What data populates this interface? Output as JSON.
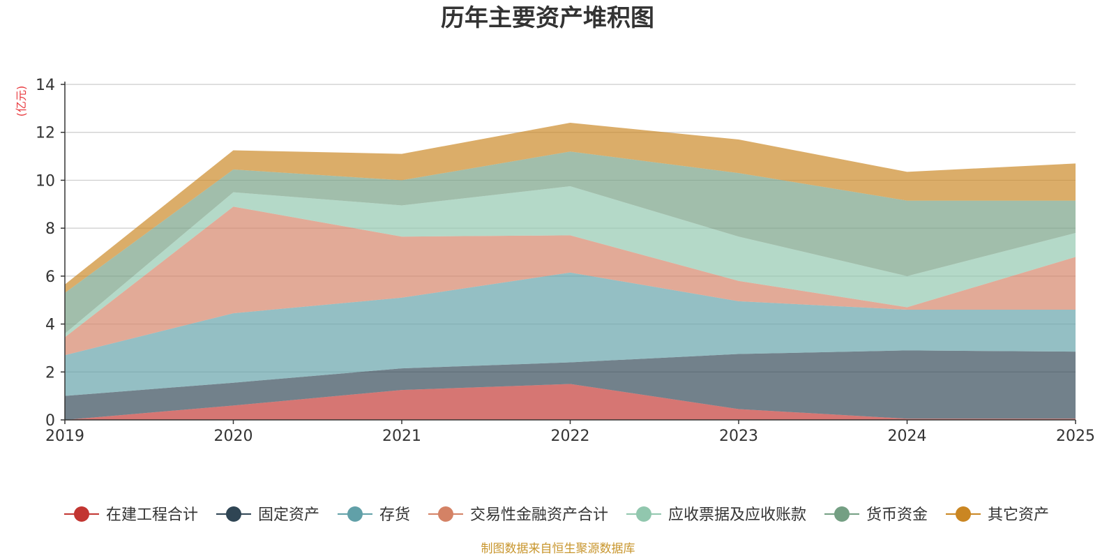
{
  "chart_data": {
    "type": "area",
    "stacked": true,
    "title": "历年主要资产堆积图",
    "ylabel": "(亿元)",
    "xlabel": "",
    "categories": [
      "2019",
      "2020",
      "2021",
      "2022",
      "2023",
      "2024",
      "2025"
    ],
    "ylim": [
      0,
      14
    ],
    "yticks": [
      0,
      2,
      4,
      6,
      8,
      10,
      12,
      14
    ],
    "grid": true,
    "legend_position": "bottom",
    "series": [
      {
        "name": "在建工程合计",
        "color": "#c23531",
        "values": [
          0.0,
          0.6,
          1.25,
          1.5,
          0.45,
          0.05,
          0.05
        ]
      },
      {
        "name": "固定资产",
        "color": "#2f4554",
        "values": [
          1.0,
          0.95,
          0.9,
          0.9,
          2.3,
          2.85,
          2.8
        ]
      },
      {
        "name": "存货",
        "color": "#61a0a8",
        "values": [
          1.7,
          2.9,
          2.95,
          3.75,
          2.2,
          1.7,
          1.75
        ]
      },
      {
        "name": "交易性金融资产合计",
        "color": "#d48265",
        "values": [
          0.75,
          4.45,
          2.55,
          1.55,
          0.85,
          0.1,
          2.2
        ]
      },
      {
        "name": "应收票据及应收账款",
        "color": "#91c7ae",
        "values": [
          0.15,
          0.6,
          1.3,
          2.05,
          1.85,
          1.3,
          1.0
        ]
      },
      {
        "name": "货币资金",
        "color": "#749f83",
        "values": [
          1.7,
          0.95,
          1.05,
          1.45,
          2.65,
          3.15,
          1.35
        ]
      },
      {
        "name": "其它资产",
        "color": "#ca8622",
        "values": [
          0.35,
          0.8,
          1.1,
          1.2,
          1.4,
          1.2,
          1.55
        ]
      }
    ],
    "source_note": "制图数据来自恒生聚源数据库"
  }
}
